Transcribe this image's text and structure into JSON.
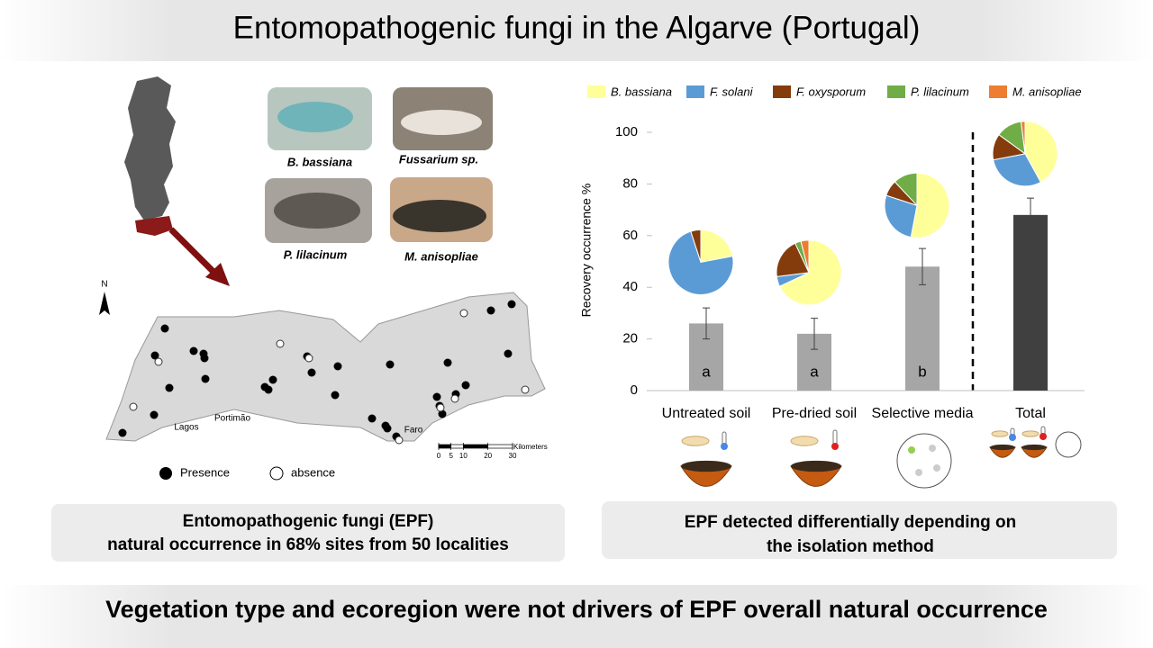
{
  "title": "Entomopathogenic fungi in the Algarve (Portugal)",
  "species_photos": [
    "B. bassiana",
    "Fussarium sp.",
    "P. lilacinum",
    "M. anisopliae"
  ],
  "map": {
    "north": "N",
    "towns": [
      "Lagos",
      "Portimão",
      "Faro"
    ],
    "scale_unit": "Kilometers",
    "scale_ticks": [
      0,
      5,
      10,
      20,
      30
    ]
  },
  "map_legend": [
    "Presence",
    "absence"
  ],
  "left_summary": [
    "Entomopathogenic fungi (EPF)",
    "natural occurrence in 68% sites from 50 localities"
  ],
  "right_summary": [
    "EPF  detected differentially depending on",
    "the isolation method"
  ],
  "conclusion": "Vegetation type and ecoregion were not drivers of EPF overall natural occurrence",
  "chart_data": {
    "type": "bar",
    "y_label": "Recovery occurrence %",
    "categories": [
      "Untreated soil",
      "Pre-dried soil",
      "Selective media",
      "Total"
    ],
    "values": [
      26,
      22,
      48,
      68
    ],
    "errors": [
      6,
      6,
      7,
      6.5
    ],
    "letters": [
      "a",
      "a",
      "b",
      null
    ],
    "bar_colors": [
      "#a6a6a6",
      "#a6a6a6",
      "#a6a6a6",
      "#404040"
    ],
    "ylim": [
      0,
      100
    ],
    "yticks": [
      0,
      20,
      40,
      60,
      80,
      100
    ],
    "series": [
      {
        "name": "B. bassiana",
        "color": "#ffff99",
        "values": [
          22,
          68,
          53,
          42
        ]
      },
      {
        "name": "F. solani",
        "color": "#5b9bd5",
        "values": [
          73,
          5,
          27,
          30
        ]
      },
      {
        "name": "F. oxysporum",
        "color": "#843c0c",
        "values": [
          5,
          20,
          8,
          13
        ]
      },
      {
        "name": "P. lilacinum",
        "color": "#70ad47",
        "values": [
          0,
          3,
          12,
          13
        ]
      },
      {
        "name": "M. anisopliae",
        "color": "#ed7d31",
        "values": [
          0,
          4,
          0,
          2
        ]
      }
    ]
  }
}
